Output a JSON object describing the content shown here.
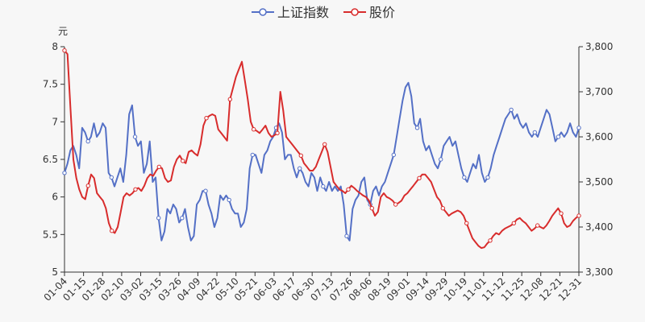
{
  "chart_data": {
    "type": "line",
    "title": "",
    "xlabel": "",
    "ylabel": "元",
    "y2label": "",
    "legend_position": "top-center",
    "grid": false,
    "x_tick_labels": [
      "01-04",
      "01-15",
      "01-28",
      "02-10",
      "03-02",
      "03-15",
      "03-26",
      "04-09",
      "04-22",
      "05-10",
      "05-21",
      "06-03",
      "06-17",
      "06-30",
      "07-13",
      "07-26",
      "08-06",
      "08-19",
      "09-01",
      "09-14",
      "09-29",
      "10-19",
      "11-01",
      "11-12",
      "11-25",
      "12-08",
      "12-21",
      "12-31"
    ],
    "ylim": [
      5,
      8
    ],
    "y_ticks": [
      "5",
      "5.5",
      "6",
      "6.5",
      "7",
      "7.5",
      "8"
    ],
    "y2lim": [
      3300,
      3800
    ],
    "y2_ticks": [
      "3,300",
      "3,400",
      "3,500",
      "3,600",
      "3,700",
      "3,800"
    ],
    "series": [
      {
        "name": "上证指数",
        "axis": "right",
        "color": "#5470c6",
        "values": [
          3520,
          3540,
          3570,
          3580,
          3560,
          3530,
          3620,
          3610,
          3590,
          3600,
          3630,
          3600,
          3610,
          3630,
          3620,
          3520,
          3510,
          3490,
          3510,
          3530,
          3500,
          3560,
          3650,
          3670,
          3600,
          3580,
          3590,
          3520,
          3540,
          3590,
          3500,
          3510,
          3420,
          3370,
          3390,
          3440,
          3430,
          3450,
          3440,
          3410,
          3420,
          3440,
          3400,
          3370,
          3380,
          3450,
          3460,
          3480,
          3480,
          3450,
          3430,
          3400,
          3420,
          3470,
          3460,
          3470,
          3460,
          3440,
          3430,
          3430,
          3400,
          3410,
          3440,
          3530,
          3560,
          3560,
          3540,
          3520,
          3560,
          3570,
          3590,
          3600,
          3620,
          3630,
          3610,
          3550,
          3560,
          3560,
          3530,
          3510,
          3530,
          3520,
          3500,
          3490,
          3520,
          3510,
          3480,
          3510,
          3490,
          3480,
          3500,
          3480,
          3490,
          3480,
          3490,
          3450,
          3380,
          3370,
          3440,
          3460,
          3470,
          3500,
          3510,
          3460,
          3450,
          3480,
          3490,
          3470,
          3490,
          3500,
          3520,
          3540,
          3560,
          3600,
          3640,
          3680,
          3710,
          3720,
          3690,
          3630,
          3620,
          3640,
          3590,
          3570,
          3580,
          3560,
          3540,
          3530,
          3550,
          3580,
          3590,
          3600,
          3580,
          3590,
          3560,
          3530,
          3510,
          3500,
          3520,
          3540,
          3530,
          3560,
          3520,
          3500,
          3510,
          3530,
          3560,
          3580,
          3600,
          3620,
          3640,
          3650,
          3660,
          3640,
          3650,
          3630,
          3620,
          3630,
          3610,
          3600,
          3610,
          3600,
          3620,
          3640,
          3660,
          3650,
          3620,
          3590,
          3600,
          3610,
          3600,
          3610,
          3630,
          3610,
          3600,
          3620
        ]
      },
      {
        "name": "股价",
        "axis": "left",
        "color": "#d82c2c",
        "values": [
          7.95,
          7.9,
          7.2,
          6.5,
          6.25,
          6.1,
          6.0,
          5.97,
          6.15,
          6.3,
          6.25,
          6.05,
          6.0,
          5.95,
          5.85,
          5.65,
          5.55,
          5.52,
          5.6,
          5.8,
          6.0,
          6.05,
          6.02,
          6.05,
          6.1,
          6.12,
          6.08,
          6.15,
          6.25,
          6.3,
          6.28,
          6.35,
          6.4,
          6.38,
          6.25,
          6.2,
          6.22,
          6.4,
          6.5,
          6.55,
          6.48,
          6.45,
          6.6,
          6.62,
          6.58,
          6.55,
          6.7,
          6.95,
          7.05,
          7.08,
          7.1,
          7.08,
          6.9,
          6.85,
          6.8,
          6.75,
          7.3,
          7.45,
          7.6,
          7.7,
          7.8,
          7.55,
          7.3,
          7.0,
          6.9,
          6.88,
          6.85,
          6.9,
          6.95,
          6.85,
          6.8,
          6.82,
          6.85,
          7.4,
          7.15,
          6.8,
          6.75,
          6.7,
          6.65,
          6.6,
          6.55,
          6.45,
          6.4,
          6.35,
          6.35,
          6.4,
          6.5,
          6.6,
          6.7,
          6.6,
          6.4,
          6.2,
          6.15,
          6.1,
          6.08,
          6.05,
          6.1,
          6.15,
          6.12,
          6.08,
          6.05,
          6.02,
          6.0,
          5.95,
          5.85,
          5.75,
          5.8,
          6.0,
          6.05,
          6.0,
          5.98,
          5.95,
          5.9,
          5.92,
          5.95,
          6.02,
          6.05,
          6.1,
          6.15,
          6.2,
          6.25,
          6.3,
          6.3,
          6.25,
          6.2,
          6.1,
          6.0,
          5.95,
          5.85,
          5.8,
          5.75,
          5.78,
          5.8,
          5.82,
          5.8,
          5.75,
          5.65,
          5.55,
          5.45,
          5.4,
          5.35,
          5.32,
          5.33,
          5.38,
          5.42,
          5.48,
          5.52,
          5.5,
          5.55,
          5.58,
          5.6,
          5.62,
          5.65,
          5.7,
          5.72,
          5.68,
          5.65,
          5.6,
          5.55,
          5.58,
          5.62,
          5.6,
          5.58,
          5.62,
          5.68,
          5.75,
          5.8,
          5.85,
          5.78,
          5.65,
          5.6,
          5.62,
          5.68,
          5.72,
          5.75
        ]
      }
    ]
  }
}
